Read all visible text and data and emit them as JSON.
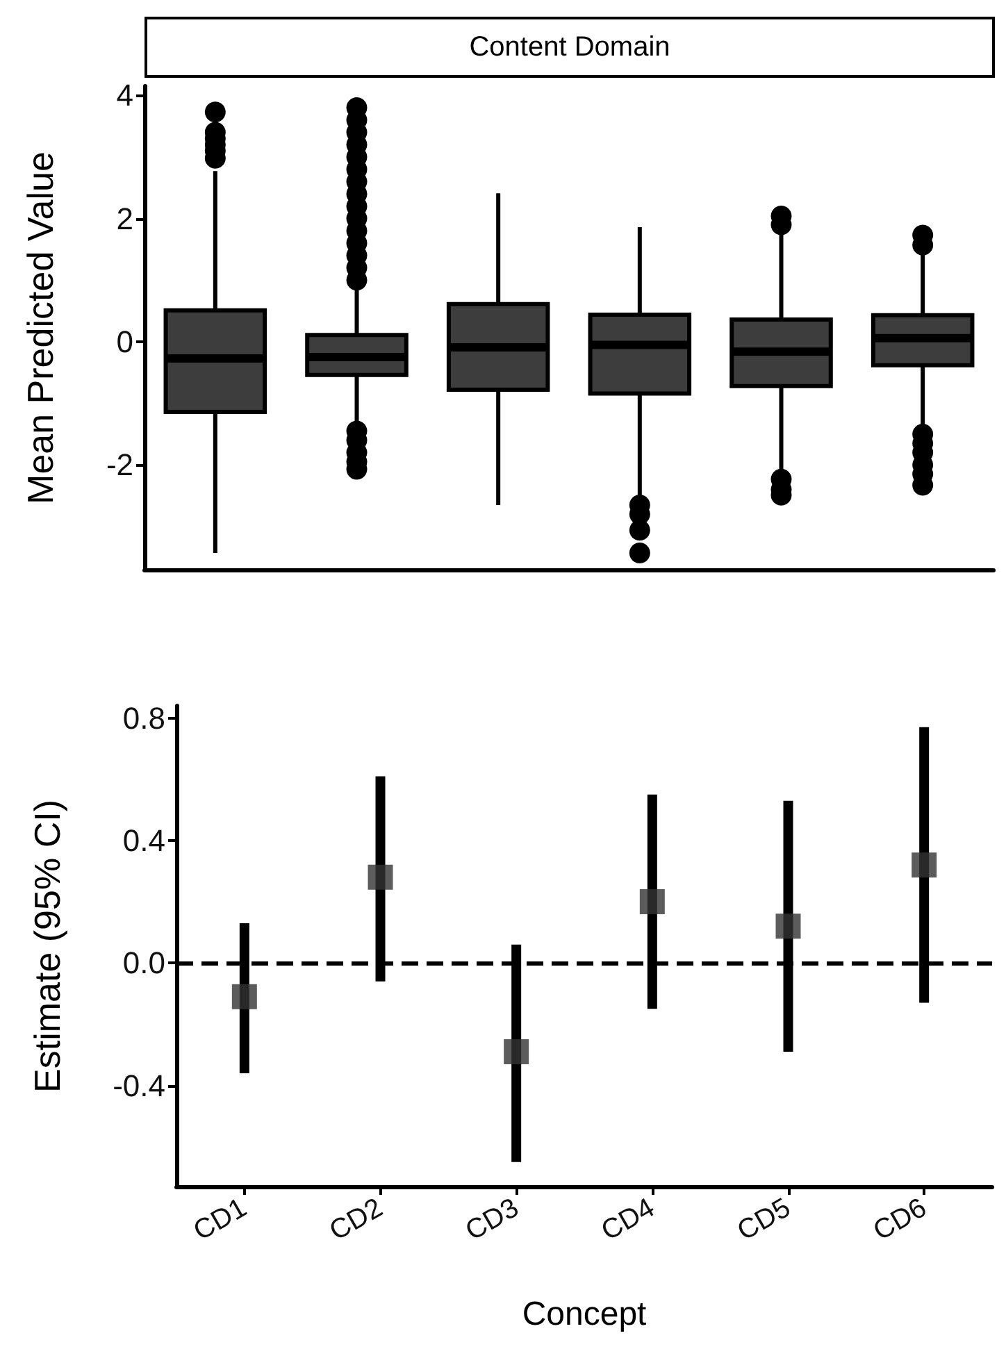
{
  "chart_data": [
    {
      "type": "box",
      "title": "Content Domain",
      "ylabel": "Mean Predicted Value",
      "categories": [
        null,
        null,
        null,
        null,
        null,
        null
      ],
      "ylim": [
        -3.7,
        4.15
      ],
      "yticks": [
        -2,
        0,
        2,
        4
      ],
      "tick_labels": "y",
      "color": "#3d3d3d",
      "boxes": [
        {
          "low": -3.43,
          "q1": -1.14,
          "median": -0.27,
          "q3": 0.51,
          "high": 2.77,
          "outliers": [
            2.98,
            3.1,
            3.2,
            3.3,
            3.4,
            3.73
          ]
        },
        {
          "low": -1.34,
          "q1": -0.54,
          "median": -0.25,
          "q3": 0.11,
          "high": 0.9,
          "outliers": [
            1.0,
            1.2,
            1.4,
            1.6,
            1.8,
            2.0,
            2.2,
            2.4,
            2.6,
            2.8,
            3.0,
            3.2,
            3.4,
            3.6,
            3.8,
            -1.45,
            -1.6,
            -1.8,
            -1.95,
            -2.07
          ]
        },
        {
          "low": -2.65,
          "q1": -0.78,
          "median": -0.09,
          "q3": 0.61,
          "high": 2.41
        },
        {
          "low": -2.54,
          "q1": -0.84,
          "median": -0.05,
          "q3": 0.44,
          "high": 1.86,
          "outliers": [
            -2.65,
            -2.8,
            -3.06,
            -3.43
          ]
        },
        {
          "low": -2.07,
          "q1": -0.72,
          "median": -0.16,
          "q3": 0.36,
          "high": 1.78,
          "outliers": [
            1.9,
            2.04,
            -2.23,
            -2.4,
            -2.49
          ]
        },
        {
          "low": -1.4,
          "q1": -0.38,
          "median": 0.06,
          "q3": 0.43,
          "high": 1.52,
          "outliers": [
            1.57,
            1.73,
            -1.5,
            -1.65,
            -1.8,
            -2.0,
            -2.15,
            -2.33
          ]
        }
      ]
    },
    {
      "type": "scatter",
      "xlabel": "Concept",
      "ylabel": "Estimate (95% CI)",
      "categories": [
        "CD1",
        "CD2",
        "CD3",
        "CD4",
        "CD5",
        "CD6"
      ],
      "ylim": [
        -0.73,
        0.84
      ],
      "yticks": [
        -0.4,
        {
          "value": 0,
          "label": "0.0"
        },
        0.4,
        0.8
      ],
      "marker": "square",
      "color": "#333333",
      "values": [
        -0.11,
        0.28,
        -0.29,
        0.2,
        0.12,
        0.32
      ],
      "errors": [
        [
          -0.36,
          0.13
        ],
        [
          -0.06,
          0.61
        ],
        [
          -0.65,
          0.06
        ],
        [
          -0.15,
          0.55
        ],
        [
          -0.29,
          0.53
        ],
        [
          -0.13,
          0.77
        ]
      ],
      "ref_lines": [
        {
          "axis": "y",
          "value": 0,
          "line_style": "dashed"
        }
      ]
    }
  ]
}
